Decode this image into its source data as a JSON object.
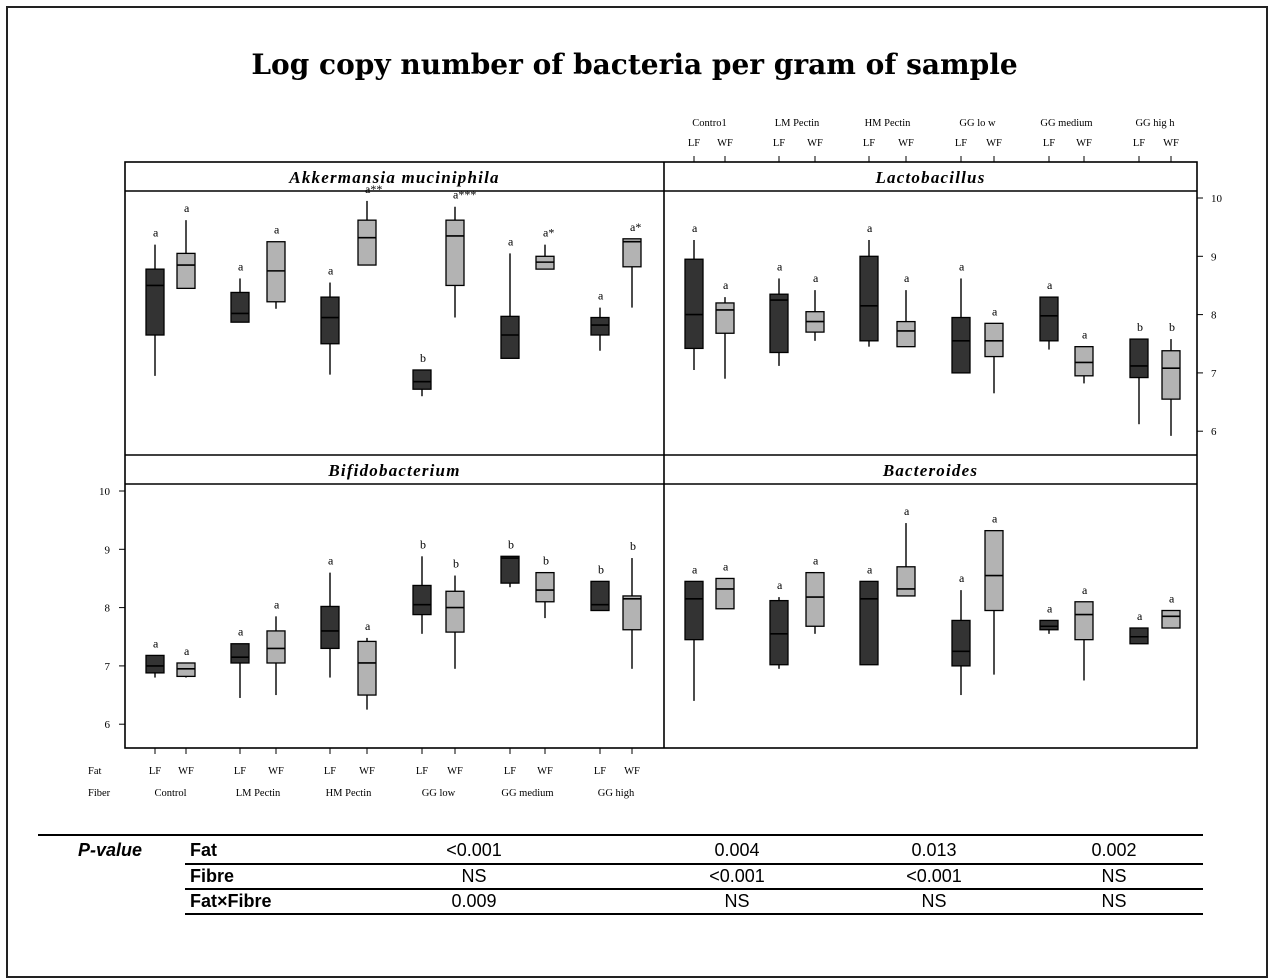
{
  "title": "Log copy number of bacteria per gram of sample",
  "chart_data": {
    "type": "boxplot",
    "title": "Log copy number of bacteria per gram of sample",
    "fat_label": "Fat",
    "fiber_label": "Fiber",
    "categories": [
      "LF",
      "WF",
      "LF",
      "WF",
      "LF",
      "WF",
      "LF",
      "WF",
      "LF",
      "WF",
      "LF",
      "WF"
    ],
    "groups": [
      "Control",
      "LM Pectin",
      "HM Pectin",
      "GG low",
      "GG medium",
      "GG high"
    ],
    "top_categories": [
      "LF",
      "WF",
      "LF",
      "WF",
      "LF",
      "WF",
      "LF",
      "WF",
      "LF",
      "WF",
      "LF",
      "WF"
    ],
    "top_groups": [
      "Contro1",
      "LM Pectin",
      "HM Pectin",
      "GG lo w",
      "GG medium",
      "GG hig h"
    ],
    "fat_colors": {
      "LF": "#333333",
      "WF": "#b3b3b3"
    },
    "ylim": [
      5.8,
      10.2
    ],
    "right_ticks": [
      "10",
      "9",
      "8",
      "7",
      "6"
    ],
    "left_ticks": [
      "10",
      "9",
      "8",
      "7",
      "6"
    ],
    "panels": [
      {
        "name": "Akkermansia muciniphila",
        "boxes": [
          {
            "min": 6.95,
            "q1": 7.65,
            "median": 8.5,
            "q3": 8.78,
            "max": 9.2,
            "label": "a"
          },
          {
            "min": 8.45,
            "q1": 8.45,
            "median": 8.85,
            "q3": 9.05,
            "max": 9.62,
            "label": "a"
          },
          {
            "min": 7.87,
            "q1": 7.87,
            "median": 8.02,
            "q3": 8.38,
            "max": 8.62,
            "label": "a"
          },
          {
            "min": 8.1,
            "q1": 8.22,
            "median": 8.75,
            "q3": 9.25,
            "max": 9.25,
            "label": "a"
          },
          {
            "min": 6.97,
            "q1": 7.5,
            "median": 7.95,
            "q3": 8.3,
            "max": 8.55,
            "label": "a"
          },
          {
            "min": 8.85,
            "q1": 8.85,
            "median": 9.32,
            "q3": 9.62,
            "max": 9.95,
            "label": "a**"
          },
          {
            "min": 6.6,
            "q1": 6.72,
            "median": 6.85,
            "q3": 7.05,
            "max": 7.05,
            "label": "b"
          },
          {
            "min": 7.95,
            "q1": 8.5,
            "median": 9.35,
            "q3": 9.62,
            "max": 9.85,
            "label": "a***"
          },
          {
            "min": 7.25,
            "q1": 7.25,
            "median": 7.65,
            "q3": 7.97,
            "max": 9.05,
            "label": "a"
          },
          {
            "min": 8.78,
            "q1": 8.78,
            "median": 8.9,
            "q3": 9.0,
            "max": 9.2,
            "label": "a*"
          },
          {
            "min": 7.38,
            "q1": 7.65,
            "median": 7.82,
            "q3": 7.95,
            "max": 8.12,
            "label": "a"
          },
          {
            "min": 8.12,
            "q1": 8.82,
            "median": 9.25,
            "q3": 9.3,
            "max": 9.3,
            "label": "a*"
          }
        ]
      },
      {
        "name": "Lactobacillus",
        "boxes": [
          {
            "min": 7.05,
            "q1": 7.42,
            "median": 8.0,
            "q3": 8.95,
            "max": 9.28,
            "label": "a"
          },
          {
            "min": 6.9,
            "q1": 7.68,
            "median": 8.08,
            "q3": 8.2,
            "max": 8.3,
            "label": "a"
          },
          {
            "min": 7.12,
            "q1": 7.35,
            "median": 8.25,
            "q3": 8.35,
            "max": 8.62,
            "label": "a"
          },
          {
            "min": 7.55,
            "q1": 7.7,
            "median": 7.88,
            "q3": 8.05,
            "max": 8.42,
            "label": "a"
          },
          {
            "min": 7.45,
            "q1": 7.55,
            "median": 8.15,
            "q3": 9.0,
            "max": 9.28,
            "label": "a"
          },
          {
            "min": 7.45,
            "q1": 7.45,
            "median": 7.72,
            "q3": 7.88,
            "max": 8.42,
            "label": "a"
          },
          {
            "min": 7.0,
            "q1": 7.0,
            "median": 7.55,
            "q3": 7.95,
            "max": 8.62,
            "label": "a"
          },
          {
            "min": 6.65,
            "q1": 7.28,
            "median": 7.55,
            "q3": 7.85,
            "max": 7.85,
            "label": "a"
          },
          {
            "min": 7.4,
            "q1": 7.55,
            "median": 7.98,
            "q3": 8.3,
            "max": 8.3,
            "label": "a"
          },
          {
            "min": 6.82,
            "q1": 6.95,
            "median": 7.18,
            "q3": 7.45,
            "max": 7.45,
            "label": "a"
          },
          {
            "min": 6.12,
            "q1": 6.92,
            "median": 7.12,
            "q3": 7.58,
            "max": 7.58,
            "label": "b"
          },
          {
            "min": 5.92,
            "q1": 6.55,
            "median": 7.08,
            "q3": 7.38,
            "max": 7.58,
            "label": "b"
          }
        ]
      },
      {
        "name": "Bifidobacterium",
        "boxes": [
          {
            "min": 6.8,
            "q1": 6.88,
            "median": 7.0,
            "q3": 7.18,
            "max": 7.18,
            "label": "a"
          },
          {
            "min": 6.8,
            "q1": 6.82,
            "median": 6.95,
            "q3": 7.05,
            "max": 7.05,
            "label": "a"
          },
          {
            "min": 6.45,
            "q1": 7.05,
            "median": 7.15,
            "q3": 7.38,
            "max": 7.38,
            "label": "a"
          },
          {
            "min": 6.5,
            "q1": 7.05,
            "median": 7.3,
            "q3": 7.6,
            "max": 7.85,
            "label": "a"
          },
          {
            "min": 6.8,
            "q1": 7.3,
            "median": 7.6,
            "q3": 8.02,
            "max": 8.6,
            "label": "a"
          },
          {
            "min": 6.25,
            "q1": 6.5,
            "median": 7.05,
            "q3": 7.42,
            "max": 7.48,
            "label": "a"
          },
          {
            "min": 7.55,
            "q1": 7.88,
            "median": 8.05,
            "q3": 8.38,
            "max": 8.88,
            "label": "b"
          },
          {
            "min": 6.95,
            "q1": 7.58,
            "median": 8.0,
            "q3": 8.28,
            "max": 8.55,
            "label": "b"
          },
          {
            "min": 8.35,
            "q1": 8.42,
            "median": 8.85,
            "q3": 8.88,
            "max": 8.88,
            "label": "b"
          },
          {
            "min": 7.82,
            "q1": 8.1,
            "median": 8.3,
            "q3": 8.6,
            "max": 8.6,
            "label": "b"
          },
          {
            "min": 7.95,
            "q1": 7.95,
            "median": 8.05,
            "q3": 8.45,
            "max": 8.45,
            "label": "b"
          },
          {
            "min": 6.95,
            "q1": 7.62,
            "median": 8.15,
            "q3": 8.2,
            "max": 8.85,
            "label": "b"
          }
        ]
      },
      {
        "name": "Bacteroides",
        "boxes": [
          {
            "min": 6.4,
            "q1": 7.45,
            "median": 8.15,
            "q3": 8.45,
            "max": 8.45,
            "label": "a"
          },
          {
            "min": 7.98,
            "q1": 7.98,
            "median": 8.32,
            "q3": 8.5,
            "max": 8.5,
            "label": "a"
          },
          {
            "min": 6.95,
            "q1": 7.02,
            "median": 7.55,
            "q3": 8.12,
            "max": 8.18,
            "label": "a"
          },
          {
            "min": 7.55,
            "q1": 7.68,
            "median": 8.18,
            "q3": 8.6,
            "max": 8.6,
            "label": "a"
          },
          {
            "min": 7.02,
            "q1": 7.02,
            "median": 8.15,
            "q3": 8.45,
            "max": 8.45,
            "label": "a"
          },
          {
            "min": 8.2,
            "q1": 8.2,
            "median": 8.32,
            "q3": 8.7,
            "max": 9.45,
            "label": "a"
          },
          {
            "min": 6.5,
            "q1": 7.0,
            "median": 7.25,
            "q3": 7.78,
            "max": 8.3,
            "label": "a"
          },
          {
            "min": 6.85,
            "q1": 7.95,
            "median": 8.55,
            "q3": 9.32,
            "max": 9.32,
            "label": "a"
          },
          {
            "min": 7.55,
            "q1": 7.62,
            "median": 7.68,
            "q3": 7.78,
            "max": 7.78,
            "label": "a"
          },
          {
            "min": 6.75,
            "q1": 7.45,
            "median": 7.88,
            "q3": 8.1,
            "max": 8.1,
            "label": "a"
          },
          {
            "min": 7.38,
            "q1": 7.38,
            "median": 7.5,
            "q3": 7.65,
            "max": 7.65,
            "label": "a"
          },
          {
            "min": 7.65,
            "q1": 7.65,
            "median": 7.85,
            "q3": 7.95,
            "max": 7.95,
            "label": "a"
          }
        ]
      }
    ]
  },
  "pvalue_table": {
    "title": "P-value",
    "rows": [
      {
        "label": "Fat",
        "values": [
          "<0.001",
          "0.004",
          "0.013",
          "0.002"
        ]
      },
      {
        "label": "Fibre",
        "values": [
          "NS",
          "<0.001",
          "<0.001",
          "NS"
        ]
      },
      {
        "label": "Fat×Fibre",
        "values": [
          "0.009",
          "NS",
          "NS",
          "NS"
        ]
      }
    ]
  }
}
